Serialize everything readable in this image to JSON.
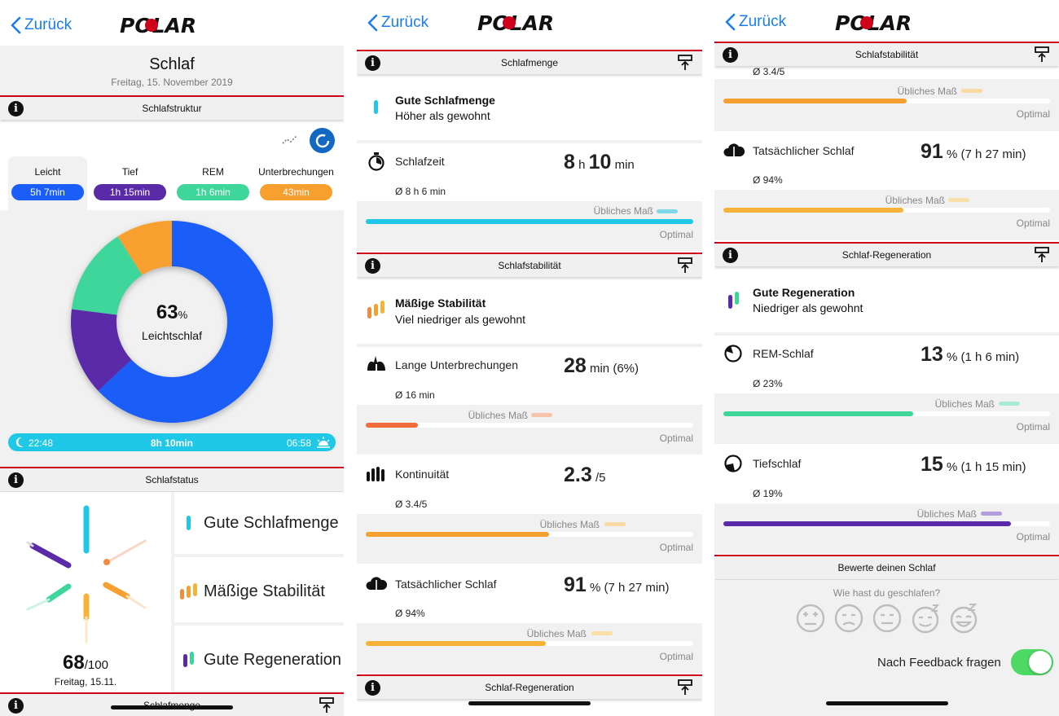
{
  "common": {
    "back_label": "Zurück",
    "logo_text": "POLAR"
  },
  "s1": {
    "title": "Schlaf",
    "date": "Freitag, 15. November 2019",
    "section_structure": "Schlafstruktur",
    "tabs": [
      {
        "name": "Leicht",
        "value": "5h 7min",
        "color": "#1a5df7"
      },
      {
        "name": "Tief",
        "value": "1h 15min",
        "color": "#5a2aa8"
      },
      {
        "name": "REM",
        "value": "1h 6min",
        "color": "#3ed69a"
      },
      {
        "name": "Unterbrechungen",
        "value": "43min",
        "color": "#f7a030"
      }
    ],
    "donut": {
      "percent": "63",
      "percent_unit": "%",
      "label": "Leichtschlaf",
      "segments": [
        {
          "name": "Leicht",
          "share": 0.63,
          "color": "#1a5df7"
        },
        {
          "name": "Tief",
          "share": 0.14,
          "color": "#5a2aa8"
        },
        {
          "name": "REM",
          "share": 0.14,
          "color": "#3ed69a"
        },
        {
          "name": "Unterbrechungen",
          "share": 0.09,
          "color": "#f7a030"
        }
      ]
    },
    "timeline": {
      "start": "22:48",
      "duration": "8h 10min",
      "end": "06:58"
    },
    "section_status": "Schlafstatus",
    "score": {
      "value": "68",
      "max": "/100",
      "date": "Freitag, 15.11."
    },
    "status_rows": [
      "Gute Schlafmenge",
      "Mäßige Stabilität",
      "Gute Regeneration"
    ],
    "section_bottom": "Schlafmenge"
  },
  "s2": {
    "section_amount": "Schlafmenge",
    "amount_title": "Gute Schlafmenge",
    "amount_sub": "Höher als gewohnt",
    "sleeptime": {
      "label": "Schlafzeit",
      "h": "8",
      "h_unit": "h",
      "m": "10",
      "m_unit": "min",
      "avg": "Ø 8 h 6 min",
      "usual": "Übliches Maß",
      "optimal": "Optimal",
      "fill": 1.0
    },
    "section_stability": "Schlafstabilität",
    "stability_title": "Mäßige Stabilität",
    "stability_sub": "Viel niedriger als gewohnt",
    "interruptions": {
      "label": "Lange Unterbrechungen",
      "value": "28",
      "unit": "min (6%)",
      "avg": "Ø 16 min",
      "usual": "Übliches Maß",
      "optimal": "Optimal",
      "fill": 0.16
    },
    "continuity": {
      "label": "Kontinuität",
      "value": "2.3",
      "unit": "/5",
      "avg": "Ø 3.4/5",
      "usual": "Übliches Maß",
      "optimal": "Optimal",
      "fill": 0.56
    },
    "actual": {
      "label": "Tatsächlicher Schlaf",
      "value": "91",
      "unit": "% (7 h 27 min)",
      "avg": "Ø 94%",
      "usual": "Übliches Maß",
      "optimal": "Optimal",
      "fill": 0.55
    },
    "section_regen": "Schlaf-Regeneration"
  },
  "s3": {
    "section_stability": "Schlafstabilität",
    "top_avg": "Ø 3.4/5",
    "top_usual": "Übliches Maß",
    "top_optimal": "Optimal",
    "top_fill": 0.56,
    "actual": {
      "label": "Tatsächlicher Schlaf",
      "value": "91",
      "unit": "% (7 h 27 min)",
      "avg": "Ø 94%",
      "usual": "Übliches Maß",
      "optimal": "Optimal",
      "fill": 0.55
    },
    "section_regen": "Schlaf-Regeneration",
    "regen_title": "Gute Regeneration",
    "regen_sub": "Niedriger als gewohnt",
    "rem": {
      "label": "REM-Schlaf",
      "value": "13",
      "unit": "% (1 h 6 min)",
      "avg": "Ø 23%",
      "usual": "Übliches Maß",
      "optimal": "Optimal",
      "fill": 0.58
    },
    "deep": {
      "label": "Tiefschlaf",
      "value": "15",
      "unit": "% (1 h 15 min)",
      "avg": "Ø 19%",
      "usual": "Übliches Maß",
      "optimal": "Optimal",
      "fill": 0.88
    },
    "rate_header": "Bewerte deinen Schlaf",
    "rate_question": "Wie hast du geschlafen?",
    "feedback_label": "Nach Feedback fragen",
    "feedback_on": true
  },
  "colors": {
    "red": "#d0021b",
    "blue": "#1a7cf3",
    "cyan": "#1ec8e6",
    "orange": "#f48a3c",
    "yellow": "#f5b342",
    "green": "#3ed69a",
    "purple": "#5a2aa8"
  }
}
